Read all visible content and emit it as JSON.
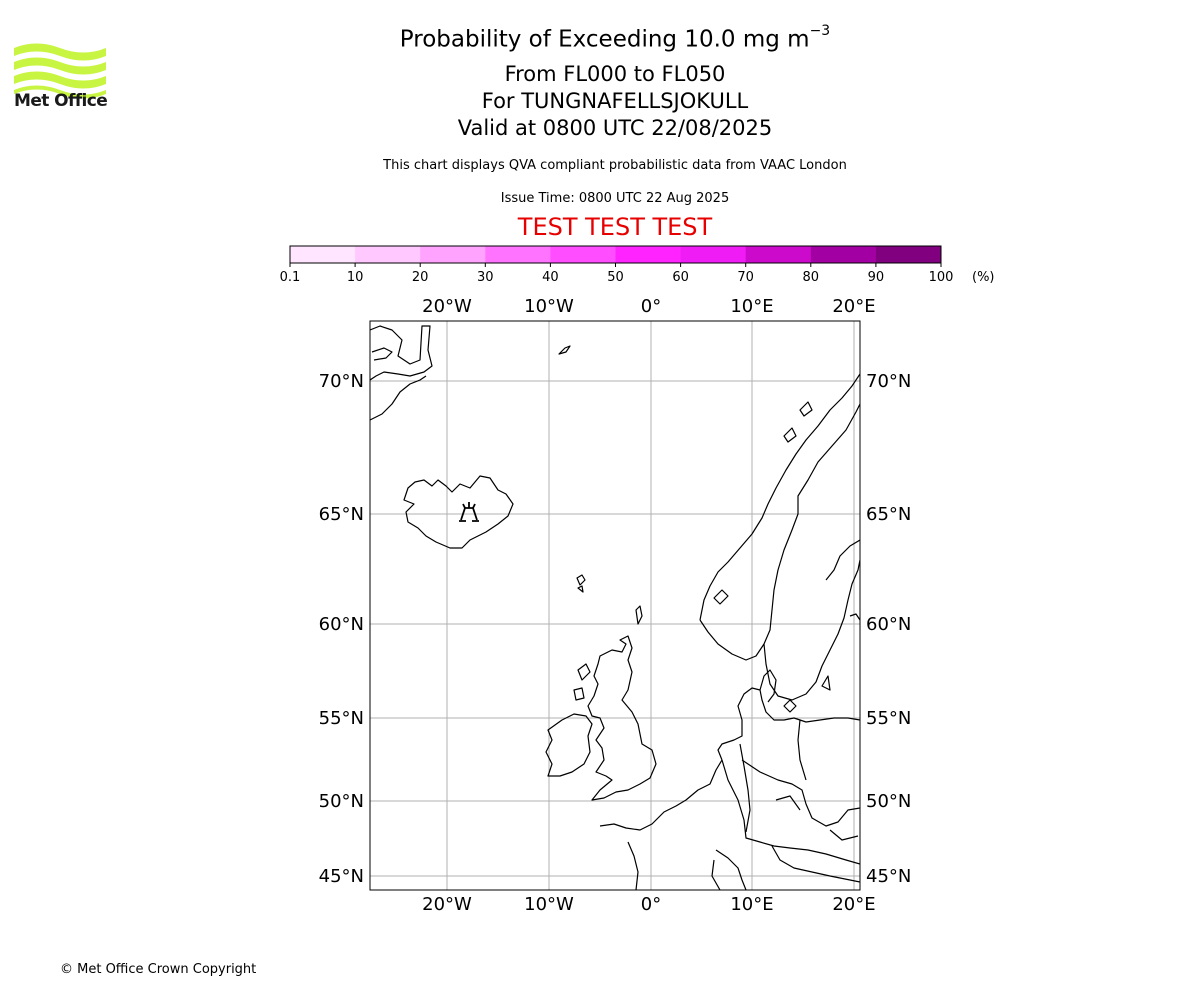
{
  "header": {
    "title_main": "Probability of Exceeding 10.0 mg m",
    "title_sup": "−3",
    "levels": "From FL000 to FL050",
    "volcano": "For TUNGNAFELLSJOKULL",
    "valid": "Valid at 0800 UTC 22/08/2025",
    "note": "This chart displays QVA compliant probabilistic data from VAAC London",
    "issue_time": "Issue Time: 0800 UTC 22 Aug 2025",
    "test_banner": "TEST TEST TEST"
  },
  "logo": {
    "text": "Met Office",
    "color": "#c8f542"
  },
  "colorbar": {
    "ticks": [
      "0.1",
      "10",
      "20",
      "30",
      "40",
      "50",
      "60",
      "70",
      "80",
      "90",
      "100"
    ],
    "unit": "(%)",
    "colors": [
      "#ffe5ff",
      "#ffc8ff",
      "#ffa3ff",
      "#ff73ff",
      "#ff4dff",
      "#ff24ff",
      "#f01cf5",
      "#cc0acc",
      "#a300a3",
      "#800080",
      "#660066"
    ]
  },
  "map": {
    "lon_labels": [
      "20°W",
      "10°W",
      "0°",
      "10°E",
      "20°E"
    ],
    "lat_labels": [
      "70°N",
      "65°N",
      "60°N",
      "55°N",
      "50°N",
      "45°N"
    ],
    "volcano_marker": "volcano-icon"
  },
  "footer": {
    "copyright": "© Met Office Crown Copyright"
  }
}
